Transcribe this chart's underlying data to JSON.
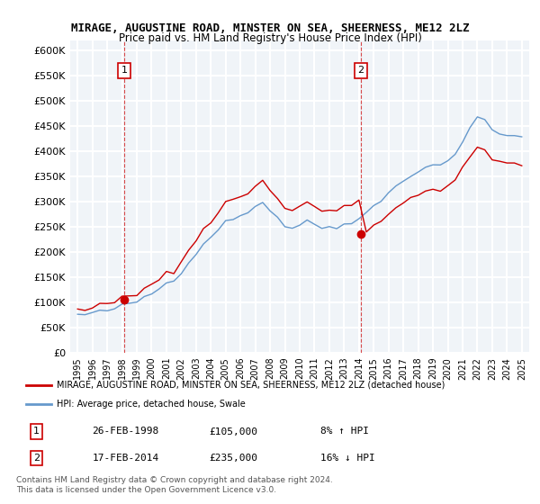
{
  "title": "MIRAGE, AUGUSTINE ROAD, MINSTER ON SEA, SHEERNESS, ME12 2LZ",
  "subtitle": "Price paid vs. HM Land Registry's House Price Index (HPI)",
  "ylabel": "",
  "ylim": [
    0,
    620000
  ],
  "yticks": [
    0,
    50000,
    100000,
    150000,
    200000,
    250000,
    300000,
    350000,
    400000,
    450000,
    500000,
    550000,
    600000
  ],
  "ytick_labels": [
    "£0",
    "£50K",
    "£100K",
    "£150K",
    "£200K",
    "£250K",
    "£300K",
    "£350K",
    "£400K",
    "£450K",
    "£500K",
    "£550K",
    "£600K"
  ],
  "bg_color": "#f0f4f8",
  "grid_color": "#ffffff",
  "red_line_color": "#cc0000",
  "blue_line_color": "#6699cc",
  "sale1_date": 1998.15,
  "sale1_price": 105000,
  "sale1_label": "1",
  "sale2_date": 2014.12,
  "sale2_price": 235000,
  "sale2_label": "2",
  "vline1_x": 1998.15,
  "vline2_x": 2014.12,
  "legend_red_label": "MIRAGE, AUGUSTINE ROAD, MINSTER ON SEA, SHEERNESS, ME12 2LZ (detached house)",
  "legend_blue_label": "HPI: Average price, detached house, Swale",
  "table_row1": [
    "1",
    "26-FEB-1998",
    "£105,000",
    "8% ↑ HPI"
  ],
  "table_row2": [
    "2",
    "17-FEB-2014",
    "£235,000",
    "16% ↓ HPI"
  ],
  "footer": "Contains HM Land Registry data © Crown copyright and database right 2024.\nThis data is licensed under the Open Government Licence v3.0.",
  "xmin": 1994.5,
  "xmax": 2025.5
}
